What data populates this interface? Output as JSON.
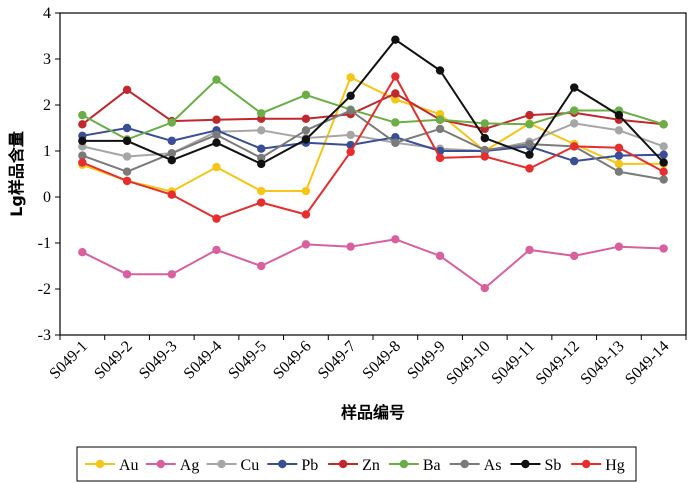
{
  "chart_data": {
    "type": "line",
    "title": "",
    "xlabel": "样品编号",
    "ylabel": "Lg样品含量",
    "ylim": [
      -3,
      4
    ],
    "yticks": [
      "-3",
      "-2",
      "-1",
      "0",
      "1",
      "2",
      "3",
      "4"
    ],
    "grid": false,
    "legend_position": "bottom",
    "categories": [
      "S049-1",
      "S049-2",
      "S049-3",
      "S049-4",
      "S049-5",
      "S049-6",
      "S049-7",
      "S049-8",
      "S049-9",
      "S049-10",
      "S049-11",
      "S049-12",
      "S049-13",
      "S049-14"
    ],
    "series": [
      {
        "name": "Au",
        "color": "#f5c518",
        "values": [
          0.7,
          0.35,
          0.12,
          0.65,
          0.13,
          0.13,
          2.6,
          2.12,
          1.8,
          1.0,
          1.6,
          1.15,
          0.72,
          0.72
        ]
      },
      {
        "name": "Ag",
        "color": "#d9609e",
        "values": [
          -1.2,
          -1.68,
          -1.68,
          -1.15,
          -1.5,
          -1.03,
          -1.08,
          -0.92,
          -1.28,
          -1.98,
          -1.15,
          -1.28,
          -1.08,
          -1.12
        ]
      },
      {
        "name": "Cu",
        "color": "#a6a6a6",
        "values": [
          1.1,
          0.88,
          0.95,
          1.42,
          1.45,
          1.28,
          1.35,
          1.18,
          1.05,
          1.0,
          1.2,
          1.6,
          1.45,
          1.1
        ]
      },
      {
        "name": "Pb",
        "color": "#3a4e96",
        "values": [
          1.33,
          1.5,
          1.22,
          1.45,
          1.05,
          1.18,
          1.13,
          1.3,
          1.0,
          1.0,
          1.1,
          0.78,
          0.9,
          0.92
        ]
      },
      {
        "name": "Zn",
        "color": "#c0282d",
        "values": [
          1.58,
          2.33,
          1.65,
          1.68,
          1.7,
          1.7,
          1.8,
          2.25,
          1.68,
          1.48,
          1.78,
          1.83,
          1.68,
          1.58
        ]
      },
      {
        "name": "Ba",
        "color": "#6aae45",
        "values": [
          1.78,
          1.25,
          1.62,
          2.55,
          1.82,
          2.22,
          1.9,
          1.62,
          1.68,
          1.6,
          1.58,
          1.88,
          1.88,
          1.58
        ]
      },
      {
        "name": "As",
        "color": "#7a7a7a",
        "values": [
          0.9,
          0.55,
          0.95,
          1.35,
          0.85,
          1.45,
          1.88,
          1.18,
          1.48,
          1.02,
          1.15,
          1.1,
          0.55,
          0.38
        ]
      },
      {
        "name": "Sb",
        "color": "#111111",
        "values": [
          1.22,
          1.22,
          0.8,
          1.18,
          0.72,
          1.25,
          2.2,
          3.42,
          2.75,
          1.28,
          0.92,
          2.38,
          1.78,
          0.75
        ]
      },
      {
        "name": "Hg",
        "color": "#e62e2e",
        "values": [
          0.75,
          0.35,
          0.05,
          -0.47,
          -0.12,
          -0.38,
          0.98,
          2.62,
          0.85,
          0.88,
          0.62,
          1.1,
          1.07,
          0.55
        ]
      }
    ]
  }
}
